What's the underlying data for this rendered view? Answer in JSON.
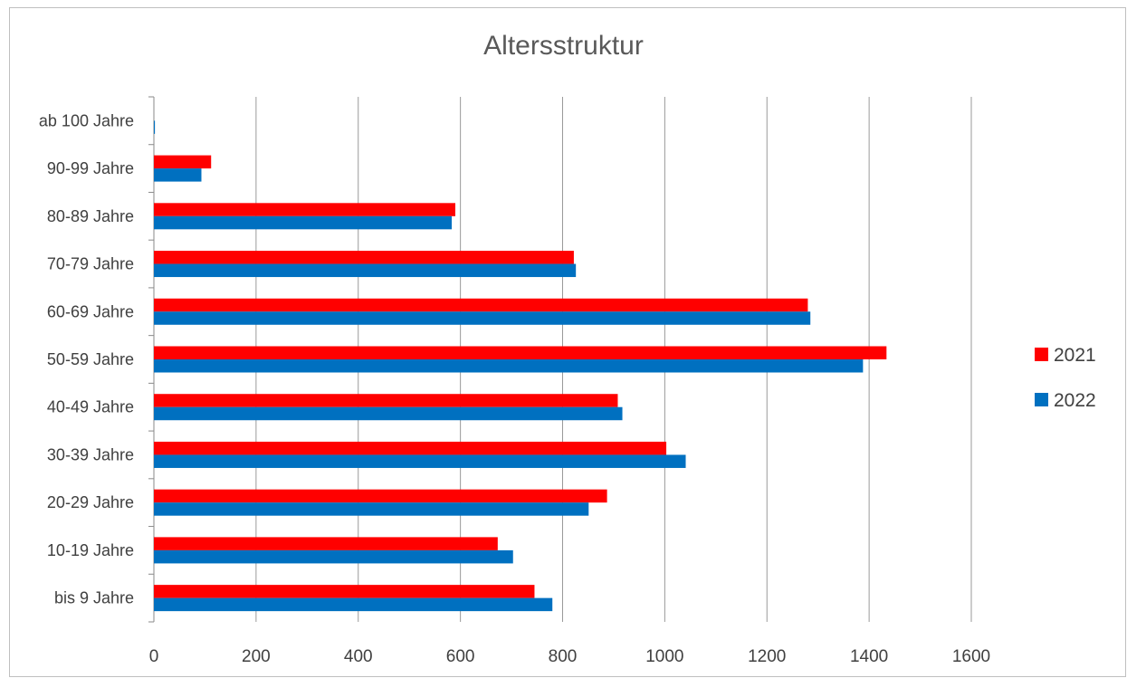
{
  "chart_data": {
    "type": "bar",
    "orientation": "horizontal",
    "title": "Altersstruktur",
    "xlabel": "",
    "ylabel": "",
    "xlim": [
      0,
      1600
    ],
    "x_ticks": [
      "0",
      "200",
      "400",
      "600",
      "800",
      "1000",
      "1200",
      "1400",
      "1600"
    ],
    "grid": "vertical",
    "legend_position": "right",
    "categories": [
      "bis 9 Jahre",
      "10-19 Jahre",
      "20-29 Jahre",
      "30-39 Jahre",
      "40-49 Jahre",
      "50-59 Jahre",
      "60-69 Jahre",
      "70-79 Jahre",
      "80-89 Jahre",
      "90-99 Jahre",
      "ab 100 Jahre"
    ],
    "series": [
      {
        "name": "2021",
        "color": "#ff0000",
        "values": [
          745,
          673,
          887,
          1003,
          908,
          1434,
          1280,
          822,
          590,
          112,
          0
        ]
      },
      {
        "name": "2022",
        "color": "#0070c0",
        "values": [
          780,
          703,
          851,
          1041,
          917,
          1388,
          1285,
          826,
          583,
          93,
          2
        ]
      }
    ]
  }
}
